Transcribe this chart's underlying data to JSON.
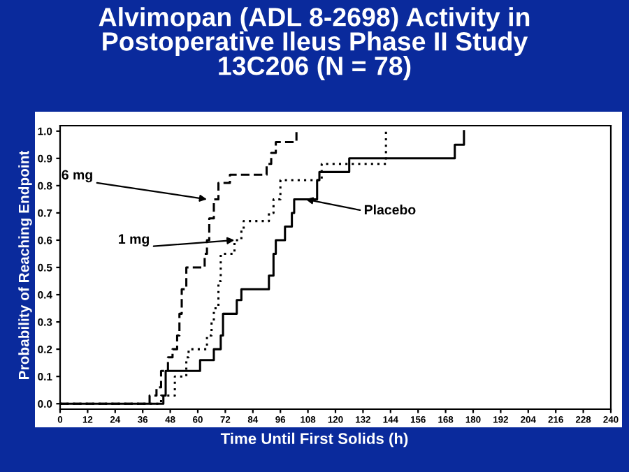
{
  "chart_data": {
    "type": "step",
    "title": "Alvimopan (ADL 8-2698) Activity in\nPostoperative Ileus Phase II Study\n13C206 (N = 78)",
    "xlabel": "Time Until First Solids (h)",
    "ylabel": "Probability of Reaching Endpoint",
    "series": [
      {
        "color": "#000000",
        "line_style": "dashed",
        "x": [
          0,
          39,
          42,
          44,
          47,
          49,
          51,
          52,
          53,
          55,
          63,
          64,
          65,
          67,
          69,
          74,
          90,
          92,
          94,
          103
        ],
        "values": [
          0,
          0.03,
          0.06,
          0.12,
          0.17,
          0.2,
          0.25,
          0.33,
          0.42,
          0.5,
          0.55,
          0.6,
          0.68,
          0.75,
          0.81,
          0.84,
          0.88,
          0.92,
          0.96,
          1.0
        ]
      },
      {
        "color": "#000000",
        "line_style": "dotted",
        "x": [
          0,
          44,
          50,
          55,
          56,
          64,
          66,
          67,
          69,
          70,
          76,
          79,
          80,
          91,
          93,
          96,
          114,
          142
        ],
        "values": [
          0,
          0.03,
          0.1,
          0.17,
          0.2,
          0.25,
          0.3,
          0.35,
          0.45,
          0.55,
          0.6,
          0.64,
          0.67,
          0.7,
          0.75,
          0.82,
          0.88,
          1.0
        ]
      },
      {
        "color": "#000000",
        "line_style": "solid",
        "x": [
          0,
          45,
          46,
          61,
          67,
          70,
          71,
          77,
          79,
          91,
          93,
          94,
          98,
          101,
          102,
          112,
          113,
          126,
          172,
          176
        ],
        "values": [
          0,
          0.03,
          0.12,
          0.16,
          0.2,
          0.25,
          0.33,
          0.38,
          0.42,
          0.47,
          0.55,
          0.6,
          0.65,
          0.7,
          0.75,
          0.82,
          0.85,
          0.9,
          0.95,
          1.0
        ]
      }
    ],
    "annotations": [
      {
        "text": "6 mg",
        "x": 64,
        "y": 0.75
      },
      {
        "text": "1 mg",
        "x": 76,
        "y": 0.6
      },
      {
        "text": "Placebo",
        "x": 107,
        "y": 0.75
      }
    ],
    "xlim": [
      0,
      240
    ],
    "xticks": [
      0,
      12,
      24,
      36,
      48,
      60,
      72,
      84,
      96,
      108,
      120,
      132,
      144,
      156,
      168,
      180,
      192,
      204,
      216,
      228,
      240
    ],
    "ylim": [
      -0.02,
      1.02
    ],
    "yticks": [
      {
        "value": 0,
        "label": "0.0"
      },
      {
        "value": 0.1,
        "label": "0.1"
      },
      {
        "value": 0.2,
        "label": "0.2"
      },
      {
        "value": 0.3,
        "label": "0.3"
      },
      {
        "value": 0.4,
        "label": "0.4"
      },
      {
        "value": 0.5,
        "label": "0.5"
      },
      {
        "value": 0.6,
        "label": "0.6"
      },
      {
        "value": 0.7,
        "label": "0.7"
      },
      {
        "value": 0.8,
        "label": "0.8"
      },
      {
        "value": 0.9,
        "label": "0.9"
      },
      {
        "value": 1.0,
        "label": "1.0"
      }
    ],
    "grid": false,
    "legend": false
  }
}
